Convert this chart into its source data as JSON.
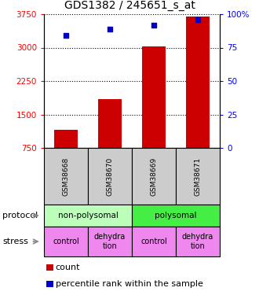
{
  "title": "GDS1382 / 245651_s_at",
  "samples": [
    "GSM38668",
    "GSM38670",
    "GSM38669",
    "GSM38671"
  ],
  "counts": [
    1150,
    1850,
    3020,
    3700
  ],
  "percentile_ranks": [
    84,
    89,
    92,
    96
  ],
  "ylim_left": [
    750,
    3750
  ],
  "ylim_right": [
    0,
    100
  ],
  "yticks_left": [
    750,
    1500,
    2250,
    3000,
    3750
  ],
  "yticks_right": [
    0,
    25,
    50,
    75,
    100
  ],
  "bar_color": "#cc0000",
  "dot_color": "#0000cc",
  "protocol_labels": [
    "non-polysomal",
    "polysomal"
  ],
  "protocol_colors": [
    "#bbffbb",
    "#44ee44"
  ],
  "stress_labels": [
    "control",
    "dehydra\ntion",
    "control",
    "dehydra\ntion"
  ],
  "stress_color": "#ee88ee",
  "sample_box_color": "#cccccc",
  "title_fontsize": 10,
  "tick_fontsize": 7.5,
  "label_fontsize": 8
}
